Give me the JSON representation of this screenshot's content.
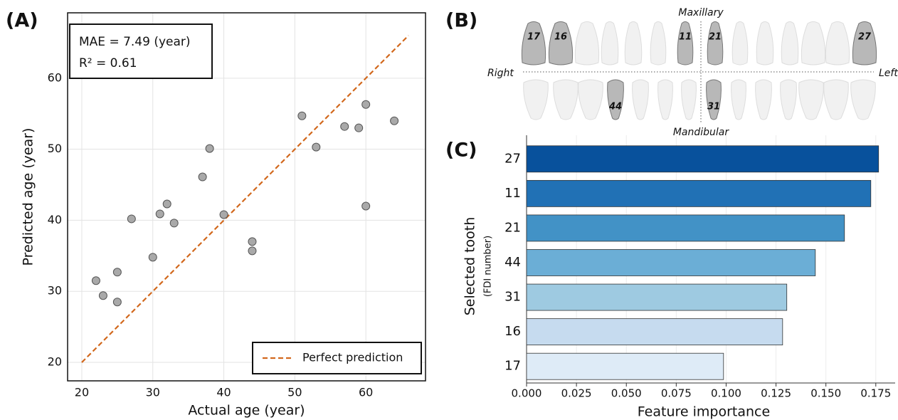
{
  "chart_data": [
    {
      "type": "scatter",
      "panel_label": "(A)",
      "xlabel": "Actual age (year)",
      "ylabel": "Predicted age (year)",
      "x": [
        22,
        23,
        25,
        25,
        27,
        30,
        31,
        32,
        33,
        37,
        38,
        40,
        44,
        44,
        51,
        53,
        57,
        59,
        60,
        60,
        64
      ],
      "values": [
        31.5,
        29.4,
        32.7,
        28.5,
        40.2,
        34.8,
        40.9,
        42.3,
        39.6,
        46.1,
        50.1,
        40.8,
        37.0,
        35.7,
        54.7,
        50.3,
        53.2,
        53.0,
        56.3,
        42.0,
        54.0
      ],
      "color": "#a9a9a9",
      "reference_line": {
        "name": "Perfect prediction",
        "x": [
          20,
          66
        ],
        "values": [
          20,
          66
        ],
        "color": "#d2691e",
        "style": "dashed"
      },
      "annotations": [
        "MAE = 7.49 (year)",
        "R² = 0.61"
      ],
      "xlim": [
        18,
        68.4
      ],
      "ylim": [
        17.4,
        69.2
      ],
      "xticks": [
        20,
        30,
        40,
        50,
        60
      ],
      "yticks": [
        20,
        30,
        40,
        50,
        60
      ],
      "grid": true,
      "legend": "lower right"
    },
    {
      "type": "bar",
      "orientation": "horizontal",
      "panel_label": "(C)",
      "xlabel": "Feature importance",
      "ylabel": "Selected tooth",
      "ylabel_sub": "(FDI number)",
      "categories": [
        "27",
        "11",
        "21",
        "44",
        "31",
        "16",
        "17"
      ],
      "values": [
        0.1764,
        0.1725,
        0.1593,
        0.1447,
        0.1304,
        0.1283,
        0.0987
      ],
      "colors": [
        "#08519c",
        "#2171b5",
        "#4292c6",
        "#6baed6",
        "#9ecae1",
        "#c6dbef",
        "#deebf7"
      ],
      "xlim": [
        0,
        0.1847
      ],
      "xticks": [
        {
          "value": 0,
          "label": "0.000"
        },
        {
          "value": 0.025,
          "label": "0.025"
        },
        {
          "value": 0.05,
          "label": "0.050"
        },
        {
          "value": 0.075,
          "label": "0.075"
        },
        {
          "value": 0.1,
          "label": "0.100"
        },
        {
          "value": 0.125,
          "label": "0.125"
        },
        {
          "value": 0.15,
          "label": "0.150"
        },
        {
          "value": 0.175,
          "label": "0.175"
        }
      ],
      "grid": true
    }
  ],
  "diagram": {
    "panel_label": "(B)",
    "top_label": "Maxillary",
    "bottom_label": "Mandibular",
    "left_label": "Right",
    "right_label": "Left",
    "teeth_labels": [
      "17",
      "16",
      "11",
      "21",
      "27",
      "44",
      "31"
    ]
  }
}
